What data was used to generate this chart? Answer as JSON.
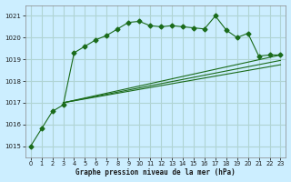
{
  "title": "Graphe pression niveau de la mer (hPa)",
  "bg_color": "#cceeff",
  "grid_color": "#b0d4d4",
  "line_color": "#1a6b1a",
  "xlim": [
    -0.5,
    23.5
  ],
  "ylim": [
    1014.5,
    1021.5
  ],
  "yticks": [
    1015,
    1016,
    1017,
    1018,
    1019,
    1020,
    1021
  ],
  "xticks": [
    0,
    1,
    2,
    3,
    4,
    5,
    6,
    7,
    8,
    9,
    10,
    11,
    12,
    13,
    14,
    15,
    16,
    17,
    18,
    19,
    20,
    21,
    22,
    23
  ],
  "series_main": {
    "x": [
      0,
      1,
      2,
      3,
      4,
      5,
      6,
      7,
      8,
      9,
      10,
      11,
      12,
      13,
      14,
      15,
      16,
      17,
      18,
      19,
      20,
      21,
      22,
      23
    ],
    "y": [
      1015.0,
      1015.8,
      1016.6,
      1016.9,
      1019.3,
      1019.6,
      1019.9,
      1020.1,
      1020.4,
      1020.7,
      1020.75,
      1020.55,
      1020.5,
      1020.55,
      1020.5,
      1020.45,
      1020.4,
      1021.0,
      1020.35,
      1020.0,
      1020.2,
      1019.15,
      1019.2,
      1019.2
    ]
  },
  "series_flat": [
    {
      "x": [
        3,
        23
      ],
      "y": [
        1017.0,
        1019.2
      ]
    },
    {
      "x": [
        3,
        23
      ],
      "y": [
        1017.0,
        1018.95
      ]
    },
    {
      "x": [
        3,
        23
      ],
      "y": [
        1017.0,
        1018.75
      ]
    }
  ],
  "marker": "D",
  "marker_size": 2.5
}
